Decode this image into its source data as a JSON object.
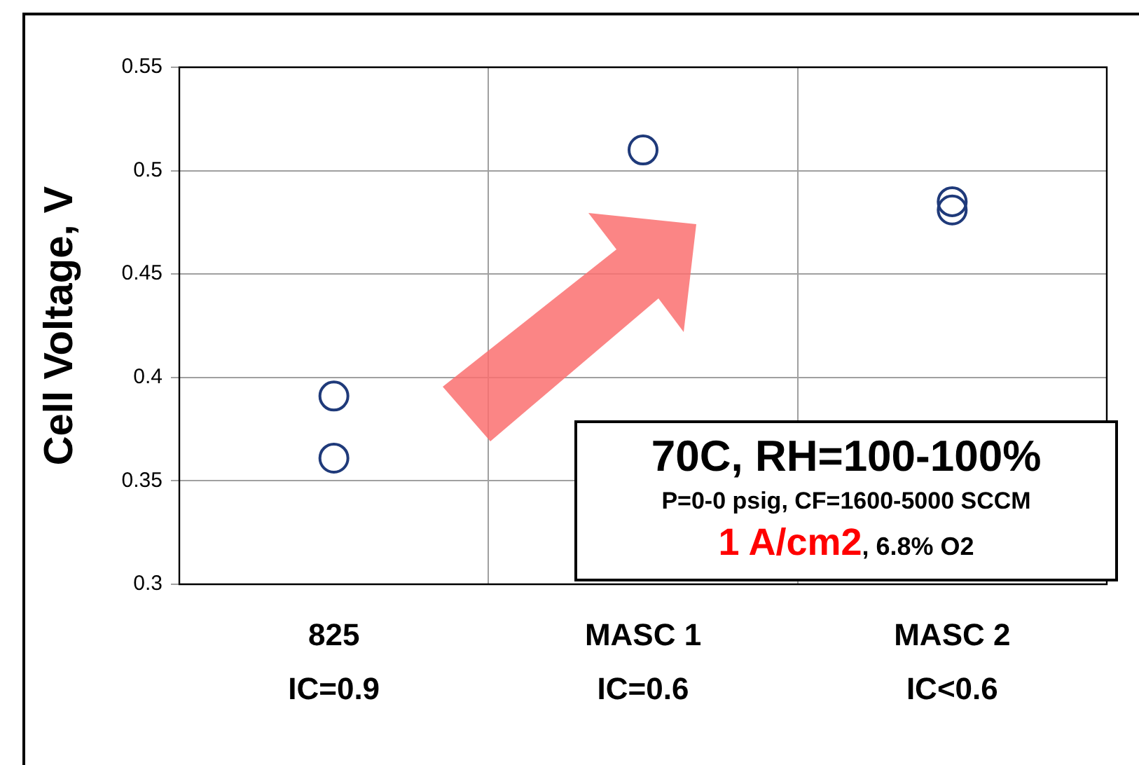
{
  "chart_data": {
    "type": "scatter",
    "ylabel": "Cell Voltage, V",
    "categories": [
      "825\nIC=0.9",
      "MASC 1\nIC=0.6",
      "MASC 2\nIC<0.6"
    ],
    "series": [
      {
        "type": "scatter",
        "color": "#1f3a7a",
        "x": [
          "825\nIC=0.9",
          "825\nIC=0.9",
          "MASC 1\nIC=0.6",
          "MASC 2\nIC<0.6",
          "MASC 2\nIC<0.6"
        ],
        "values": [
          0.391,
          0.361,
          0.51,
          0.485,
          0.481
        ]
      }
    ],
    "ylim": [
      0.3,
      0.55
    ],
    "yticks": [
      0.3,
      0.35,
      0.4,
      0.45,
      0.5,
      0.55
    ],
    "grid": true,
    "legend": false,
    "marker": "circle",
    "annotations": [
      "70C, RH=100-100%",
      "P=0-0 psig, CF=1600-5000 SCCM",
      "1 A/cm2, 6.8% O2"
    ]
  }
}
